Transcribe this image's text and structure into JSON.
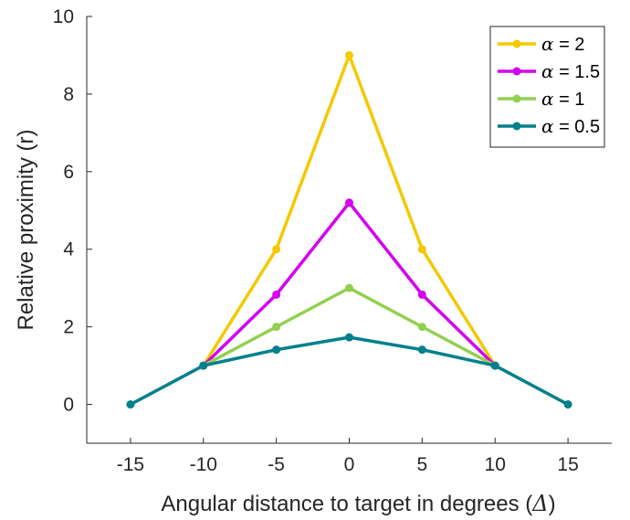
{
  "chart_data": {
    "type": "line",
    "title": "",
    "xlabel": "Angular distance to target in degrees (",
    "xlabel_symbol": "Δ",
    "xlabel_close": ")",
    "ylabel": "Relative proximity (r)",
    "xlim": [
      -18,
      18
    ],
    "ylim": [
      -1,
      10
    ],
    "xticks": [
      -15,
      -10,
      -5,
      0,
      5,
      10,
      15
    ],
    "xtick_labels": [
      "-15",
      "-10",
      "-5",
      "0",
      "5",
      "10",
      "15"
    ],
    "yticks": [
      0,
      2,
      4,
      6,
      8,
      10
    ],
    "ytick_labels": [
      "0",
      "2",
      "4",
      "6",
      "8",
      "10"
    ],
    "grid": false,
    "legend_position": "top-right",
    "series": [
      {
        "name": "α = 2",
        "name_symbol": "α",
        "name_rest": " = 2",
        "color": "#f5c800",
        "x": [
          -10,
          -5,
          0,
          5,
          10
        ],
        "y": [
          1,
          4,
          9,
          4,
          1
        ]
      },
      {
        "name": "α = 1.5",
        "name_symbol": "α",
        "name_rest": " = 1.5",
        "color": "#d400f0",
        "x": [
          -10,
          -5,
          0,
          5,
          10
        ],
        "y": [
          1,
          2.83,
          5.2,
          2.83,
          1
        ]
      },
      {
        "name": "α = 1",
        "name_symbol": "α",
        "name_rest": " = 1",
        "color": "#92d050",
        "x": [
          -10,
          -5,
          0,
          5,
          10
        ],
        "y": [
          1,
          2,
          3,
          2,
          1
        ]
      },
      {
        "name": "α = 0.5",
        "name_symbol": "α",
        "name_rest": " = 0.5",
        "color": "#00808c",
        "x": [
          -15,
          -10,
          -5,
          0,
          5,
          10,
          15
        ],
        "y": [
          0,
          1,
          1.41,
          1.73,
          1.41,
          1,
          0
        ]
      }
    ]
  }
}
